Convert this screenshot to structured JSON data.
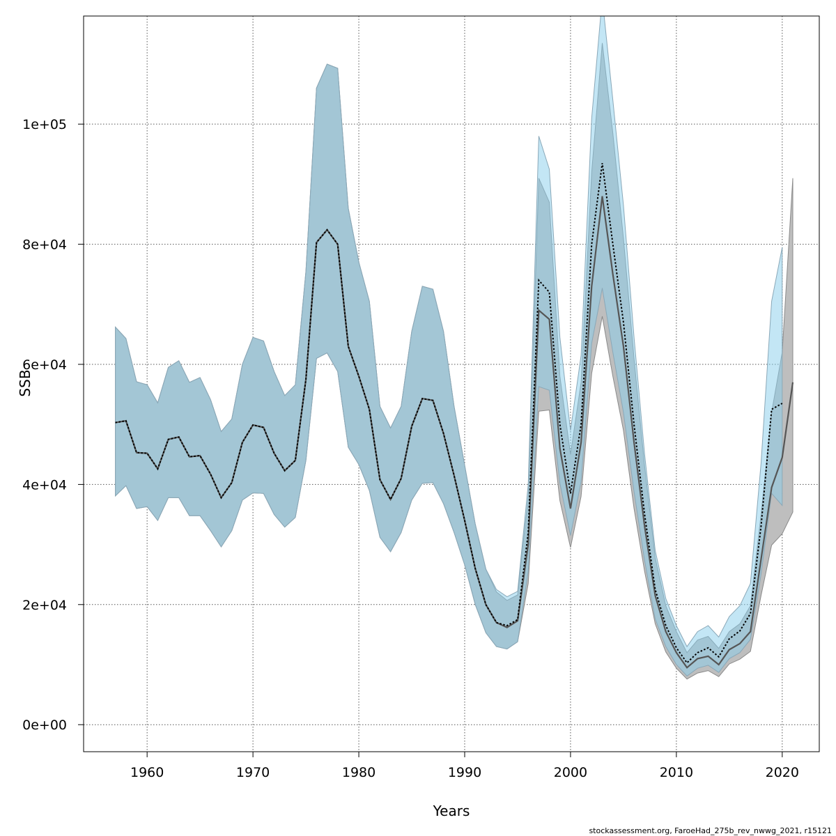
{
  "chart_data": {
    "type": "area",
    "xlabel": "Years",
    "ylabel": "SSB",
    "xlim": [
      1954,
      2023.5
    ],
    "ylim": [
      -4500,
      118000
    ],
    "xticks": [
      1960,
      1970,
      1980,
      1990,
      2000,
      2010,
      2020
    ],
    "xtick_labels": [
      "1960",
      "1970",
      "1980",
      "1990",
      "2000",
      "2010",
      "2020"
    ],
    "yticks": [
      0,
      20000,
      40000,
      60000,
      80000,
      100000
    ],
    "ytick_labels": [
      "0e+00",
      "2e+04",
      "4e+04",
      "6e+04",
      "8e+04",
      "1e+05"
    ],
    "grid": true,
    "footer": "stockassessment.org, FaroeHad_275b_rev_nwwg_2021, r15121",
    "colors": {
      "band_grey": "#bebebe",
      "band_blue": "#87ceeb",
      "line_grey": "#555555",
      "line_dotted": "#000000",
      "grid": "#555555"
    },
    "series": [
      {
        "role": "grey_run",
        "x": [
          1957,
          1958,
          1959,
          1960,
          1961,
          1962,
          1963,
          1964,
          1965,
          1966,
          1967,
          1968,
          1969,
          1970,
          1971,
          1972,
          1973,
          1974,
          1975,
          1976,
          1977,
          1978,
          1979,
          1980,
          1981,
          1982,
          1983,
          1984,
          1985,
          1986,
          1987,
          1988,
          1989,
          1990,
          1991,
          1992,
          1993,
          1994,
          1995,
          1996,
          1997,
          1998,
          1999,
          2000,
          2001,
          2002,
          2003,
          2004,
          2005,
          2006,
          2007,
          2008,
          2009,
          2010,
          2011,
          2012,
          2013,
          2014,
          2015,
          2016,
          2017,
          2018,
          2019,
          2020,
          2021
        ],
        "estimate": [
          50300,
          50600,
          45300,
          45200,
          42600,
          47500,
          47900,
          44600,
          44800,
          41700,
          37800,
          40300,
          47000,
          49900,
          49500,
          45200,
          42300,
          44000,
          57500,
          80300,
          82400,
          80000,
          63000,
          58000,
          52500,
          40800,
          37500,
          41000,
          49700,
          54300,
          54000,
          48500,
          41500,
          34000,
          26000,
          20000,
          17000,
          16200,
          17300,
          30000,
          69000,
          67500,
          46000,
          36000,
          47000,
          73000,
          88000,
          75000,
          63000,
          47000,
          33000,
          21500,
          15500,
          12000,
          9500,
          11000,
          11400,
          10000,
          12500,
          13500,
          15500,
          27500,
          39500,
          44500,
          57000
        ],
        "lower": [
          38100,
          39800,
          36000,
          36300,
          34000,
          37800,
          37800,
          34800,
          34800,
          32300,
          29600,
          32300,
          37400,
          38600,
          38500,
          35000,
          32900,
          34500,
          44000,
          61000,
          61900,
          58800,
          46200,
          43300,
          39000,
          31200,
          28800,
          32000,
          37400,
          40200,
          40300,
          36800,
          32000,
          26600,
          20000,
          15300,
          13000,
          12600,
          13800,
          23500,
          52200,
          52400,
          37300,
          29500,
          38000,
          58500,
          68000,
          58000,
          49000,
          36000,
          25500,
          16800,
          12100,
          9400,
          7600,
          8600,
          9000,
          8000,
          10100,
          10900,
          12200,
          21500,
          29900,
          31800,
          35400
        ],
        "upper": [
          66200,
          64300,
          57100,
          56600,
          53600,
          59500,
          60600,
          57000,
          57800,
          54100,
          48800,
          50900,
          60000,
          64500,
          63900,
          58800,
          54800,
          56600,
          75500,
          106000,
          110000,
          109300,
          86000,
          77000,
          70500,
          53000,
          49400,
          53000,
          65500,
          73000,
          72500,
          65500,
          53000,
          43200,
          33400,
          25900,
          22100,
          20700,
          21600,
          38000,
          91000,
          87000,
          58000,
          45000,
          57000,
          92000,
          113500,
          98500,
          81000,
          61000,
          43000,
          27800,
          19800,
          15500,
          12000,
          14100,
          14700,
          12700,
          15500,
          16800,
          19800,
          35000,
          52000,
          62000,
          91000
        ]
      },
      {
        "role": "blue_run",
        "x": [
          1957,
          1958,
          1959,
          1960,
          1961,
          1962,
          1963,
          1964,
          1965,
          1966,
          1967,
          1968,
          1969,
          1970,
          1971,
          1972,
          1973,
          1974,
          1975,
          1976,
          1977,
          1978,
          1979,
          1980,
          1981,
          1982,
          1983,
          1984,
          1985,
          1986,
          1987,
          1988,
          1989,
          1990,
          1991,
          1992,
          1993,
          1994,
          1995,
          1996,
          1997,
          1998,
          1999,
          2000,
          2001,
          2002,
          2003,
          2004,
          2005,
          2006,
          2007,
          2008,
          2009,
          2010,
          2011,
          2012,
          2013,
          2014,
          2015,
          2016,
          2017,
          2018,
          2019,
          2020
        ],
        "estimate": [
          50300,
          50600,
          45300,
          45200,
          42600,
          47500,
          47900,
          44600,
          44800,
          41700,
          37800,
          40300,
          47000,
          49900,
          49500,
          45200,
          42300,
          44000,
          57500,
          80300,
          82400,
          80000,
          63000,
          58000,
          52500,
          40800,
          37500,
          41000,
          49700,
          54300,
          54000,
          48500,
          41500,
          34000,
          26000,
          20000,
          17000,
          16500,
          17500,
          32000,
          74000,
          72000,
          50000,
          38500,
          50000,
          80000,
          93500,
          80000,
          67000,
          50000,
          35000,
          22500,
          16500,
          12800,
          10300,
          12000,
          12800,
          11300,
          14300,
          15600,
          18500,
          33000,
          52500,
          53500
        ],
        "lower": [
          38100,
          39800,
          36000,
          36300,
          34000,
          37800,
          37800,
          34800,
          34800,
          32300,
          29600,
          32300,
          37400,
          38600,
          38500,
          35000,
          32900,
          34500,
          44000,
          61000,
          61900,
          58800,
          46200,
          43300,
          39000,
          31200,
          28800,
          32000,
          37400,
          40200,
          40300,
          36800,
          32000,
          26600,
          20000,
          15300,
          13000,
          12600,
          13800,
          25500,
          56300,
          55700,
          40200,
          31500,
          40500,
          63500,
          72700,
          62000,
          52000,
          38800,
          27300,
          17600,
          13000,
          10000,
          8100,
          9400,
          9900,
          8700,
          11000,
          12000,
          14200,
          25000,
          38500,
          36500
        ],
        "upper": [
          66200,
          64300,
          57100,
          56600,
          53600,
          59500,
          60600,
          57000,
          57800,
          54100,
          48800,
          50900,
          60000,
          64500,
          63900,
          58800,
          54800,
          56600,
          75500,
          106000,
          110000,
          109300,
          86000,
          77000,
          70500,
          53000,
          49400,
          53000,
          65500,
          73000,
          72500,
          65500,
          53000,
          43200,
          33400,
          25900,
          22500,
          21300,
          22200,
          40000,
          98000,
          92500,
          64500,
          49000,
          61500,
          101000,
          121000,
          104000,
          86500,
          64500,
          45000,
          29000,
          21000,
          16500,
          13000,
          15500,
          16500,
          14600,
          18000,
          19800,
          23500,
          43500,
          70500,
          79500
        ]
      }
    ]
  }
}
